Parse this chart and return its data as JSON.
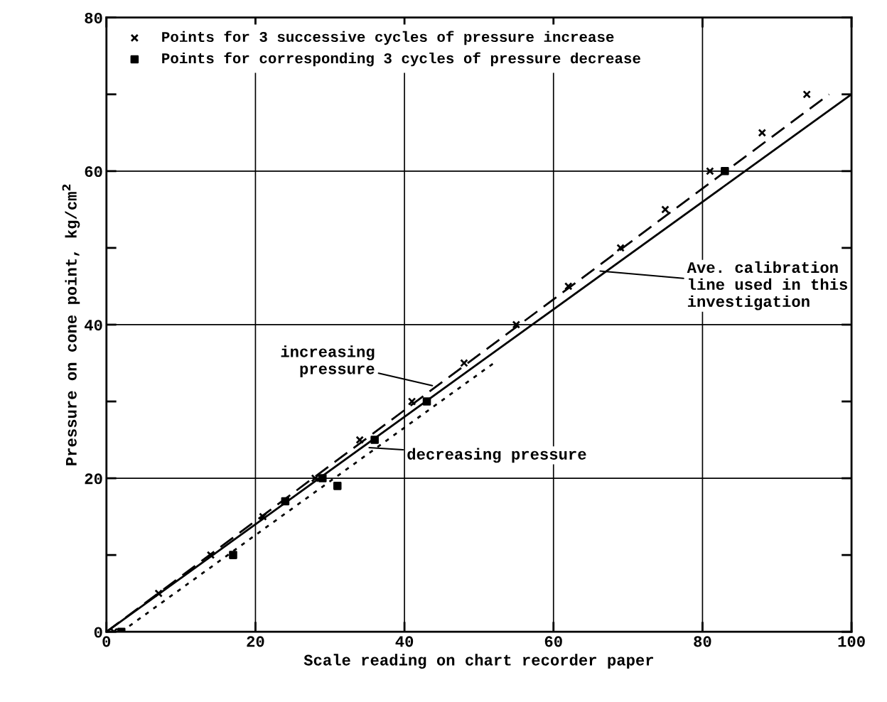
{
  "chart_data": {
    "type": "line",
    "xlabel": "Scale reading on chart recorder paper",
    "ylabel": "Pressure on cone point, kg/cm$^{2}$",
    "xlim": [
      0,
      100
    ],
    "xticks": [
      0,
      20,
      40,
      60,
      80,
      100
    ],
    "ylim": [
      0,
      80
    ],
    "yticks": [
      0,
      {
        "value": 10,
        "label": null
      },
      20,
      {
        "value": 30,
        "label": null
      },
      40,
      {
        "value": 50,
        "label": null
      },
      60,
      {
        "value": 70,
        "label": null
      },
      80
    ],
    "grid": true,
    "legend": "top left",
    "series": [
      {
        "name": "Points for 3 successive cycles of pressure increase",
        "type": "scatter",
        "marker": "cross",
        "color": "#000000",
        "x": [
          1,
          7,
          14,
          21,
          28,
          34,
          41,
          48,
          55,
          62,
          69,
          75,
          81,
          88,
          94
        ],
        "values": [
          0,
          5,
          10,
          15,
          20,
          25,
          30,
          35,
          40,
          45,
          50,
          55,
          60,
          65,
          70
        ]
      },
      {
        "name": "Points for corresponding 3 cycles of pressure decrease",
        "type": "scatter",
        "marker": "square",
        "color": "#000000",
        "x": [
          2,
          17,
          24,
          29,
          31,
          36,
          43,
          83
        ],
        "values": [
          0,
          10,
          17,
          20,
          19,
          25,
          30,
          60
        ]
      },
      {
        "line_style": "solid",
        "color": "#000000",
        "x": [
          0,
          100
        ],
        "values": [
          0,
          70
        ]
      },
      {
        "line_style": "dashed",
        "color": "#000000",
        "x": [
          0,
          97
        ],
        "values": [
          0,
          70
        ]
      },
      {
        "line_style": "dotted",
        "color": "#000000",
        "x": [
          2,
          52
        ],
        "values": [
          0,
          35
        ]
      }
    ],
    "annotations": [
      {
        "text": "increasing\npressure",
        "x": 44,
        "y": 32
      },
      {
        "text": "decreasing pressure",
        "x": 35,
        "y": 24
      },
      {
        "text": "Ave. calibration\nline used in this\ninvestigation",
        "x": 66,
        "y": 47
      }
    ]
  }
}
